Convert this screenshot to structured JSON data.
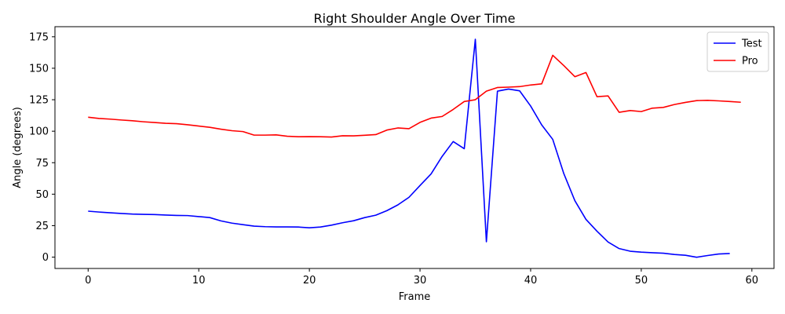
{
  "chart_data": {
    "type": "line",
    "title": "Right Shoulder Angle Over Time",
    "xlabel": "Frame",
    "ylabel": "Angle (degrees)",
    "xlim": [
      -3,
      62
    ],
    "ylim": [
      -9,
      183
    ],
    "xticks": [
      0,
      10,
      20,
      30,
      40,
      50,
      60
    ],
    "yticks": [
      0,
      25,
      50,
      75,
      100,
      125,
      150,
      175
    ],
    "grid": false,
    "legend_position": "top-right",
    "series": [
      {
        "name": "Test",
        "color": "#0000ff",
        "x": [
          0,
          1,
          2,
          3,
          4,
          5,
          6,
          7,
          8,
          9,
          10,
          11,
          12,
          13,
          14,
          15,
          16,
          17,
          18,
          19,
          20,
          21,
          22,
          23,
          24,
          25,
          26,
          27,
          28,
          29,
          30,
          31,
          32,
          33,
          34,
          35,
          36,
          37,
          38,
          39,
          40,
          41,
          42,
          43,
          44,
          45,
          46,
          47,
          48,
          49,
          50,
          51,
          52,
          53,
          54,
          55,
          56,
          57,
          58
        ],
        "values": [
          36.5,
          35.8,
          35.2,
          34.7,
          34.2,
          34.0,
          33.8,
          33.4,
          33.1,
          33.0,
          32.2,
          31.4,
          28.8,
          27.0,
          25.8,
          24.6,
          24.2,
          24.0,
          24.0,
          23.9,
          23.3,
          23.9,
          25.4,
          27.3,
          28.9,
          31.4,
          33.3,
          36.9,
          41.5,
          47.5,
          56.9,
          66.1,
          80.0,
          91.8,
          86.1,
          173.0,
          12.2,
          131.8,
          133.5,
          132.1,
          120.0,
          105.0,
          93.5,
          66.3,
          44.8,
          30.0,
          20.6,
          12.0,
          6.8,
          4.7,
          4.0,
          3.5,
          3.1,
          2.1,
          1.5,
          -0.1,
          1.3,
          2.5,
          2.9
        ]
      },
      {
        "name": "Pro",
        "color": "#ff0000",
        "x": [
          0,
          1,
          2,
          3,
          4,
          5,
          6,
          7,
          8,
          9,
          10,
          11,
          12,
          13,
          14,
          15,
          16,
          17,
          18,
          19,
          20,
          21,
          22,
          23,
          24,
          25,
          26,
          27,
          28,
          29,
          30,
          31,
          32,
          33,
          34,
          35,
          36,
          37,
          38,
          39,
          40,
          41,
          42,
          43,
          44,
          45,
          46,
          47,
          48,
          49,
          50,
          51,
          52,
          53,
          54,
          55,
          56,
          57,
          58,
          59
        ],
        "values": [
          111.1,
          110.1,
          109.6,
          108.9,
          108.3,
          107.5,
          106.9,
          106.3,
          106.0,
          105.1,
          104.1,
          103.1,
          101.6,
          100.4,
          99.7,
          96.9,
          96.9,
          97.1,
          96.0,
          95.6,
          95.7,
          95.6,
          95.4,
          96.4,
          96.3,
          96.8,
          97.3,
          100.9,
          102.6,
          102.0,
          107.0,
          110.4,
          111.7,
          117.3,
          123.6,
          125.0,
          131.8,
          134.7,
          135.0,
          135.4,
          136.7,
          137.6,
          160.3,
          152.1,
          143.3,
          146.6,
          127.4,
          128.0,
          115.0,
          116.4,
          115.6,
          118.3,
          118.9,
          121.2,
          122.9,
          124.3,
          124.5,
          124.1,
          123.6,
          123.0
        ]
      }
    ]
  }
}
